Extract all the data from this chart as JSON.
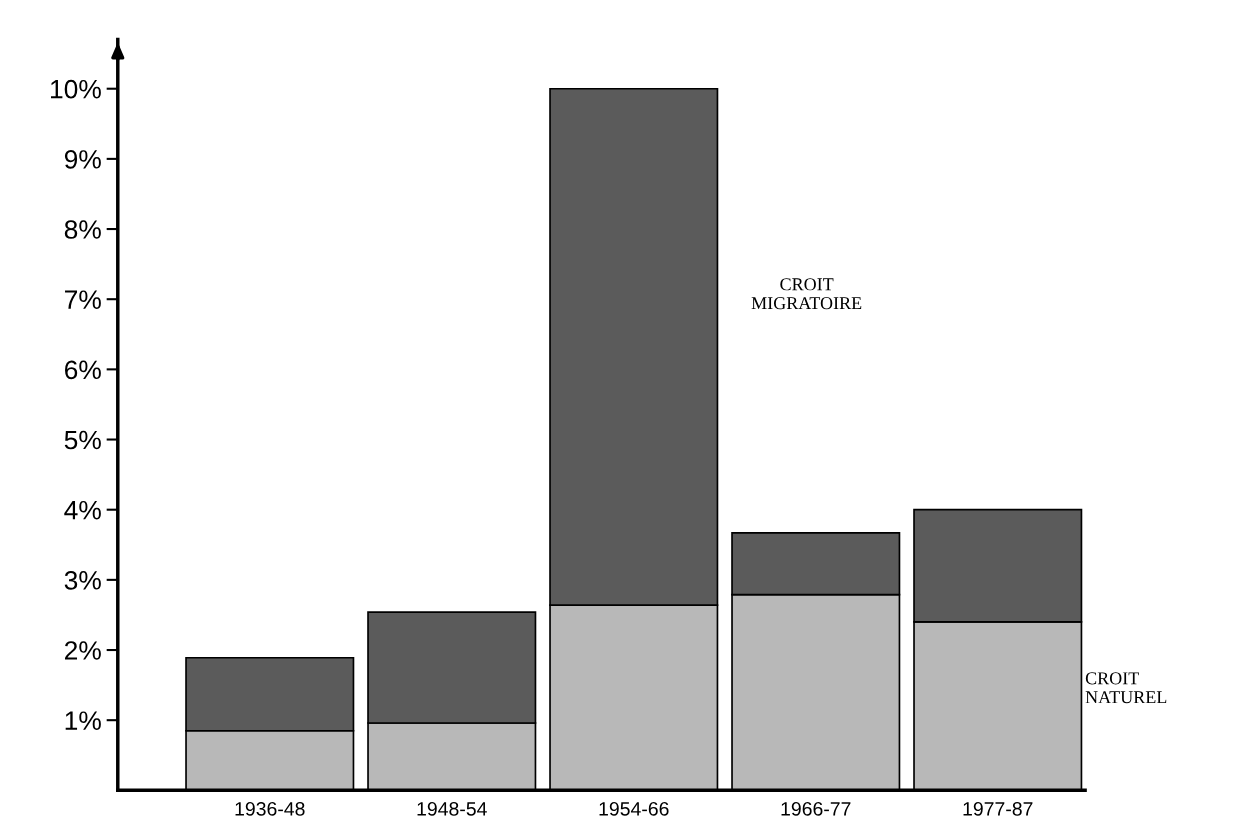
{
  "chart_data": {
    "type": "bar",
    "stacked": true,
    "categories": [
      "1936-48",
      "1948-54",
      "1954-66",
      "1966-77",
      "1977-87"
    ],
    "series": [
      {
        "name": "CROIT NATUREL",
        "color": "#b8b8b8",
        "values": [
          0.85,
          0.96,
          2.64,
          2.79,
          2.4
        ]
      },
      {
        "name": "CROIT MIGRATOIRE",
        "color": "#5b5b5b",
        "values": [
          1.04,
          1.58,
          7.36,
          0.88,
          1.6
        ]
      }
    ],
    "ylim": [
      0,
      10.7
    ],
    "yticks": [
      {
        "value": 1,
        "label": "1%"
      },
      {
        "value": 2,
        "label": "2%"
      },
      {
        "value": 3,
        "label": "3%"
      },
      {
        "value": 4,
        "label": "4%"
      },
      {
        "value": 5,
        "label": "5%"
      },
      {
        "value": 6,
        "label": "6%"
      },
      {
        "value": 7,
        "label": "7%"
      },
      {
        "value": 8,
        "label": "8%"
      },
      {
        "value": 9,
        "label": "9%"
      },
      {
        "value": 10,
        "label": "10%"
      }
    ],
    "grid": false,
    "legend": false
  }
}
